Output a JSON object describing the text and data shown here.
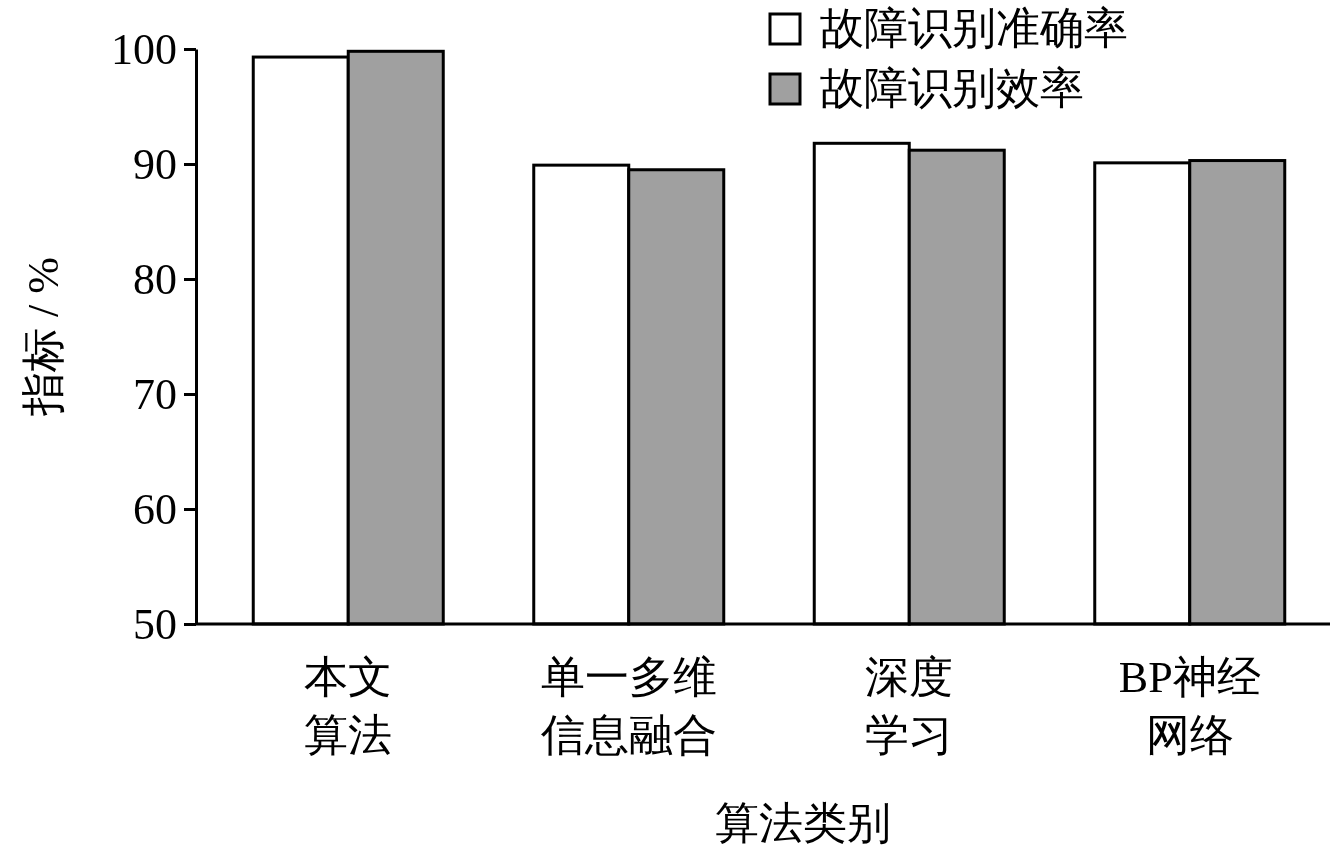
{
  "chart_data": {
    "type": "bar",
    "xlabel": "算法类别",
    "ylabel": "指标 / %",
    "categories": [
      "本文算法",
      "单一多维信息融合",
      "深度学习",
      "BP神经网络"
    ],
    "series": [
      {
        "name": "故障识别准确率",
        "color": "#ffffff",
        "values": [
          99.3,
          89.9,
          91.8,
          90.1
        ]
      },
      {
        "name": "故障识别效率",
        "color": "#a0a0a0",
        "values": [
          99.8,
          89.5,
          91.2,
          90.3
        ]
      }
    ],
    "ylim": [
      50,
      100
    ],
    "yticks": [
      50,
      60,
      70,
      80,
      90,
      100
    ],
    "grid": false,
    "legend": "top right"
  }
}
